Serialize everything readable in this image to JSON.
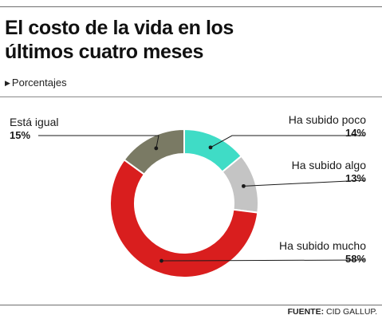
{
  "header": {
    "title_line1": "El costo de la vida en los",
    "title_line2": "últimos cuatro meses",
    "subtitle": "Porcentajes"
  },
  "footer": {
    "source_label": "FUENTE:",
    "source_name": "CID GALLUP."
  },
  "chart_data": {
    "type": "pie",
    "style": "donut",
    "title": "El costo de la vida en los últimos cuatro meses",
    "subtitle": "Porcentajes",
    "legend": "none",
    "slices": [
      {
        "label": "Ha subido poco",
        "value": 14,
        "value_label": "14%",
        "color": "#3fdcc6"
      },
      {
        "label": "Ha subido algo",
        "value": 13,
        "value_label": "13%",
        "color": "#c4c4c4"
      },
      {
        "label": "Ha subido mucho",
        "value": 58,
        "value_label": "58%",
        "color": "#d91e1e"
      },
      {
        "label": "Está igual",
        "value": 15,
        "value_label": "15%",
        "color": "#7a7a64"
      }
    ]
  }
}
